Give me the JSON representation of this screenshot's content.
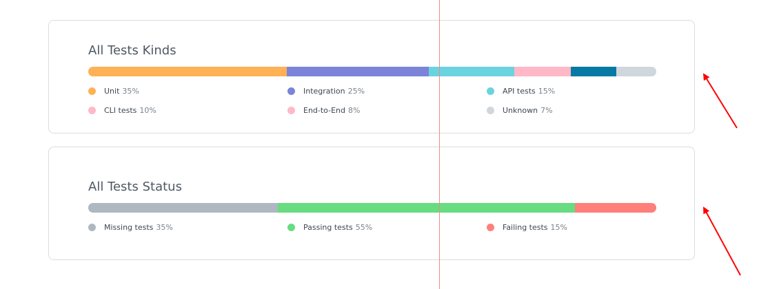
{
  "cards": {
    "kinds": {
      "title": "All Tests Kinds"
    },
    "status": {
      "title": "All Tests Status"
    }
  },
  "chart_data": [
    {
      "type": "bar",
      "orientation": "horizontal-stacked",
      "title": "All Tests Kinds",
      "unit": "%",
      "series": [
        {
          "name": "Unit",
          "value": 35,
          "label": "35%",
          "color": "#ffb155"
        },
        {
          "name": "Integration",
          "value": 25,
          "label": "25%",
          "color": "#7b84d9"
        },
        {
          "name": "API tests",
          "value": 15,
          "label": "15%",
          "color": "#6ad3e0"
        },
        {
          "name": "CLI tests",
          "value": 10,
          "label": "10%",
          "color": "#ffb8c7"
        },
        {
          "name": "End-to-End",
          "value": 8,
          "label": "8%",
          "color": "#0779a5"
        },
        {
          "name": "Unknown",
          "value": 7,
          "label": "7%",
          "color": "#cfd6dc"
        }
      ],
      "legend_colors": [
        "#ffb155",
        "#7b84d9",
        "#6ad3e0",
        "#ffb8c7",
        "#ffb8c7",
        "#cfd6dc"
      ]
    },
    {
      "type": "bar",
      "orientation": "horizontal-stacked",
      "title": "All Tests Status",
      "unit": "%",
      "series": [
        {
          "name": "Missing tests",
          "value": 35,
          "label": "35%",
          "color": "#aeb8c2"
        },
        {
          "name": "Passing tests",
          "value": 55,
          "label": "55%",
          "color": "#67dc80"
        },
        {
          "name": "Failing tests",
          "value": 15,
          "label": "15%",
          "color": "#ff7f7a"
        }
      ],
      "legend_colors": [
        "#aeb8c2",
        "#67dc80",
        "#ff7f7a"
      ]
    }
  ]
}
